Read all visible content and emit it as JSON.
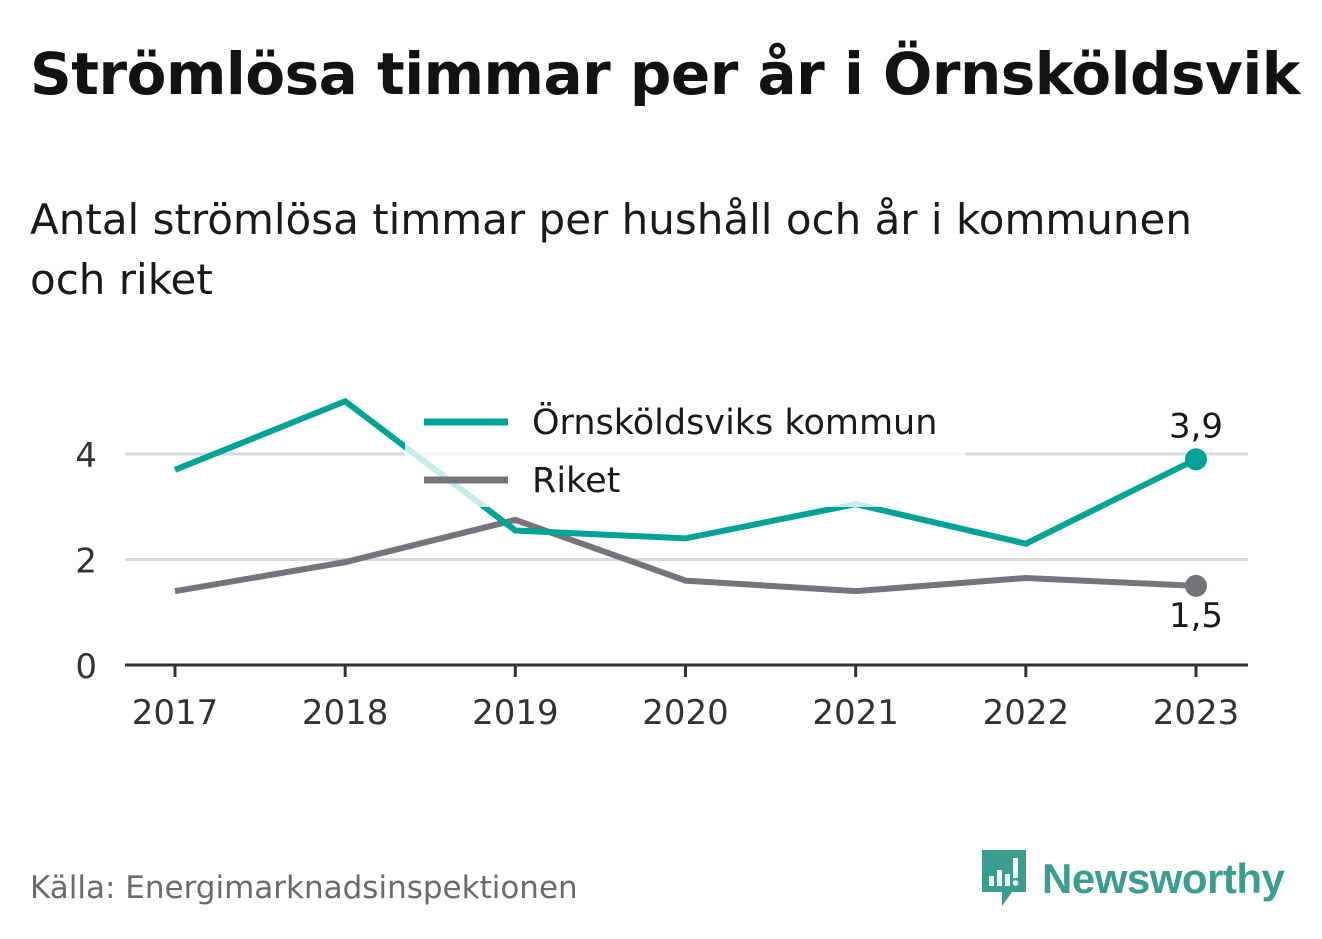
{
  "header": {
    "title": "Strömlösa timmar per år i Örnsköldsvik",
    "subtitle": "Antal strömlösa timmar per hushåll och år i kommunen och riket"
  },
  "footer": {
    "source": "Källa: Energimarknadsinspektionen",
    "brand": "Newsworthy"
  },
  "colors": {
    "kommun": "#00a396",
    "riket": "#75747a",
    "grid": "#d9d9d9",
    "axis": "#333333",
    "brand": "#3b9c8f"
  },
  "icons": {
    "brand_logo": "bar-chart-speech-bubble-icon"
  },
  "chart_data": {
    "type": "line",
    "x": [
      "2017",
      "2018",
      "2019",
      "2020",
      "2021",
      "2022",
      "2023"
    ],
    "series": [
      {
        "name": "Örnsköldsviks kommun",
        "values": [
          3.7,
          5.0,
          2.55,
          2.4,
          3.05,
          2.3,
          3.9
        ]
      },
      {
        "name": "Riket",
        "values": [
          1.4,
          1.95,
          2.75,
          1.6,
          1.4,
          1.65,
          1.5
        ]
      }
    ],
    "end_labels": [
      "3,9",
      "1,5"
    ],
    "yticks": [
      "0",
      "2",
      "4"
    ],
    "ylim": [
      0,
      5.2
    ],
    "xlabel": "",
    "ylabel": "",
    "grid": true,
    "legend": "top-center"
  }
}
